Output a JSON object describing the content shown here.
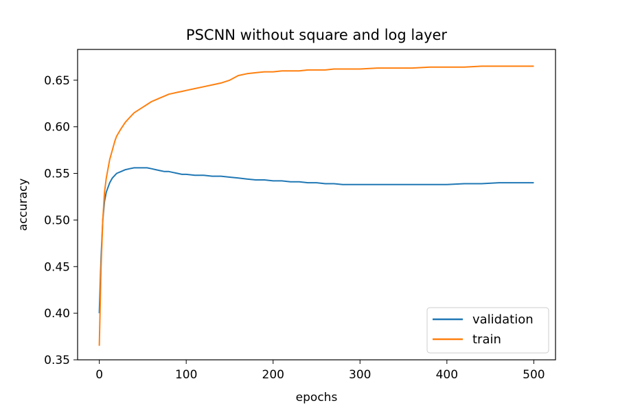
{
  "chart_data": {
    "type": "line",
    "title": "PSCNN without square and log layer",
    "xlabel": "epochs",
    "ylabel": "accuracy",
    "xlim": [
      -25,
      525
    ],
    "ylim": [
      0.35,
      0.683
    ],
    "xticks": [
      0,
      100,
      200,
      300,
      400,
      500
    ],
    "yticks": [
      0.35,
      0.4,
      0.45,
      0.5,
      0.55,
      0.6,
      0.65
    ],
    "ytick_labels": [
      "0.35",
      "0.40",
      "0.45",
      "0.50",
      "0.55",
      "0.60",
      "0.65"
    ],
    "grid": false,
    "legend_position": "lower-right",
    "series": [
      {
        "name": "validation",
        "color": "#1f77b4",
        "x": [
          0,
          2,
          4,
          6,
          8,
          10,
          12,
          15,
          18,
          20,
          25,
          30,
          35,
          40,
          45,
          50,
          55,
          60,
          65,
          70,
          75,
          80,
          85,
          90,
          95,
          100,
          110,
          120,
          130,
          140,
          150,
          160,
          170,
          180,
          190,
          200,
          210,
          220,
          230,
          240,
          250,
          260,
          270,
          280,
          290,
          300,
          320,
          340,
          360,
          380,
          400,
          420,
          440,
          460,
          480,
          500
        ],
        "y": [
          0.4,
          0.46,
          0.5,
          0.52,
          0.53,
          0.535,
          0.54,
          0.545,
          0.548,
          0.55,
          0.552,
          0.554,
          0.555,
          0.556,
          0.556,
          0.556,
          0.556,
          0.555,
          0.554,
          0.553,
          0.552,
          0.552,
          0.551,
          0.55,
          0.549,
          0.549,
          0.548,
          0.548,
          0.547,
          0.547,
          0.546,
          0.545,
          0.544,
          0.543,
          0.543,
          0.542,
          0.542,
          0.541,
          0.541,
          0.54,
          0.54,
          0.539,
          0.539,
          0.538,
          0.538,
          0.538,
          0.538,
          0.538,
          0.538,
          0.538,
          0.538,
          0.539,
          0.539,
          0.54,
          0.54,
          0.54
        ]
      },
      {
        "name": "train",
        "color": "#ff7f0e",
        "x": [
          0,
          2,
          4,
          6,
          8,
          10,
          12,
          15,
          18,
          20,
          25,
          30,
          35,
          40,
          45,
          50,
          55,
          60,
          65,
          70,
          75,
          80,
          85,
          90,
          95,
          100,
          110,
          120,
          130,
          140,
          150,
          160,
          170,
          180,
          190,
          200,
          210,
          220,
          230,
          240,
          250,
          260,
          270,
          280,
          290,
          300,
          320,
          340,
          360,
          380,
          400,
          420,
          440,
          460,
          480,
          500
        ],
        "y": [
          0.365,
          0.45,
          0.5,
          0.53,
          0.545,
          0.555,
          0.565,
          0.575,
          0.585,
          0.59,
          0.598,
          0.605,
          0.61,
          0.615,
          0.618,
          0.621,
          0.624,
          0.627,
          0.629,
          0.631,
          0.633,
          0.635,
          0.636,
          0.637,
          0.638,
          0.639,
          0.641,
          0.643,
          0.645,
          0.647,
          0.65,
          0.655,
          0.657,
          0.658,
          0.659,
          0.659,
          0.66,
          0.66,
          0.66,
          0.661,
          0.661,
          0.661,
          0.662,
          0.662,
          0.662,
          0.662,
          0.663,
          0.663,
          0.663,
          0.664,
          0.664,
          0.664,
          0.665,
          0.665,
          0.665,
          0.665
        ]
      }
    ]
  }
}
